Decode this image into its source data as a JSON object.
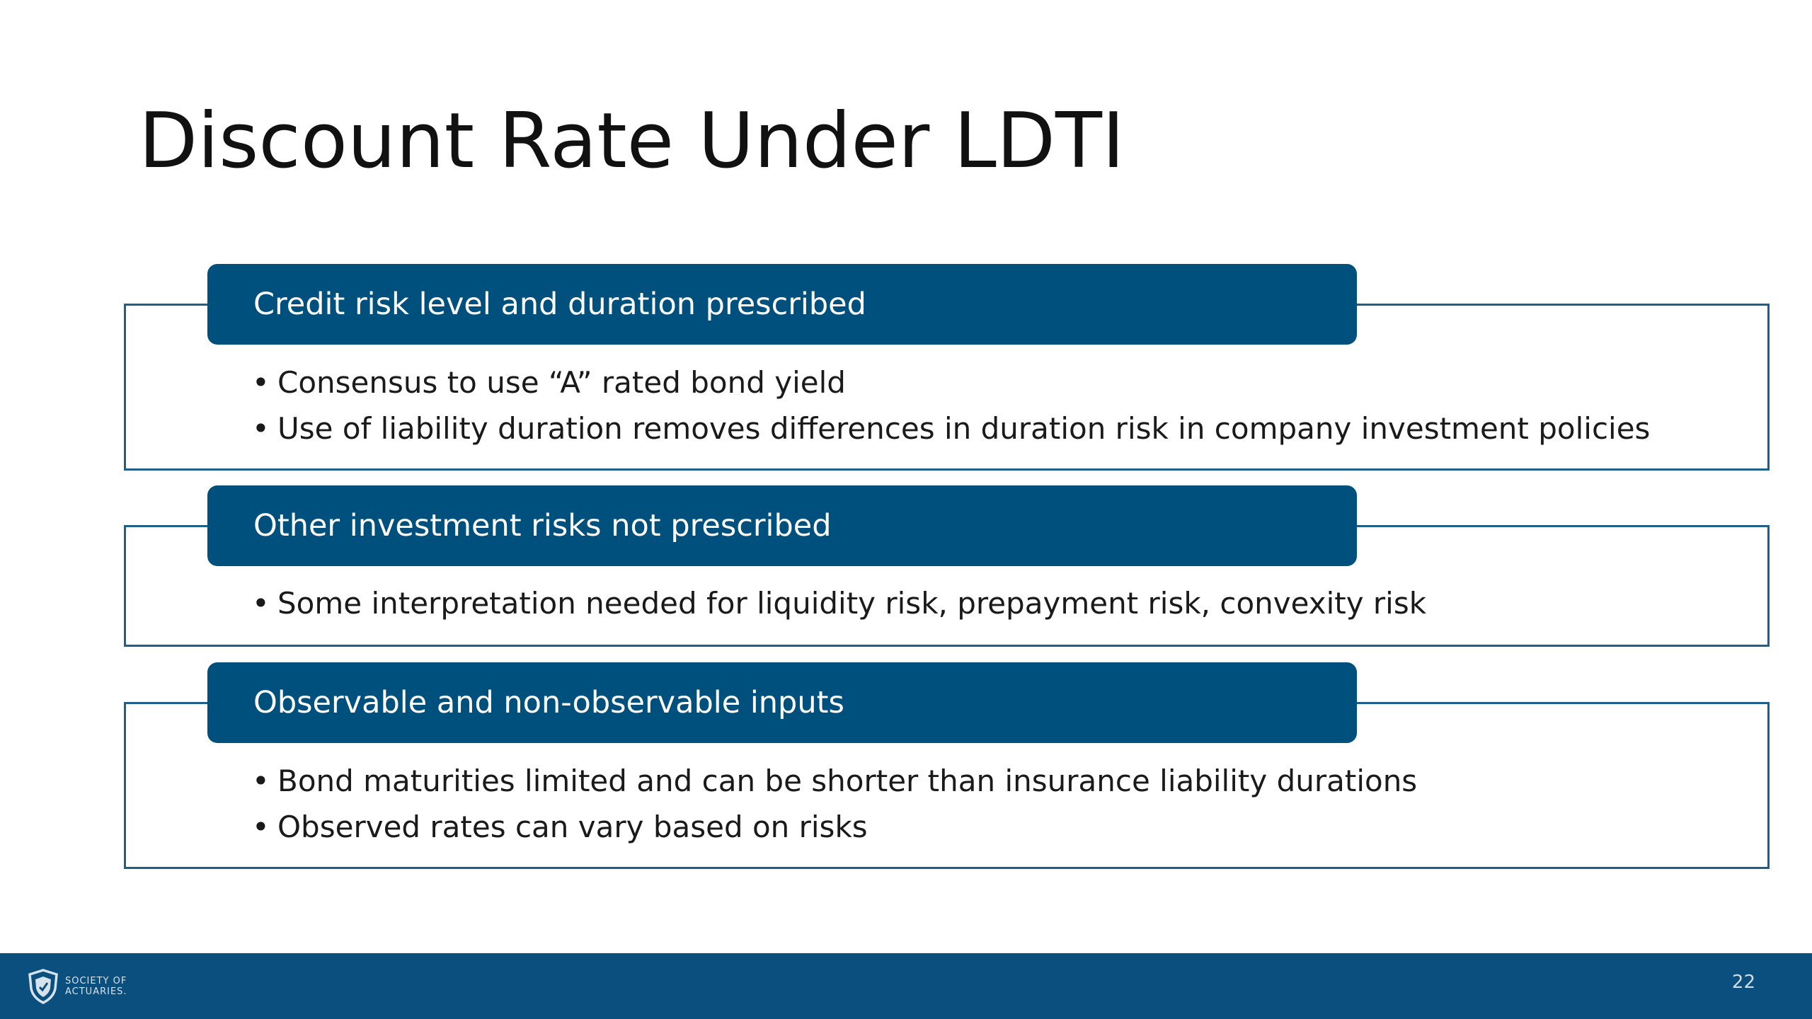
{
  "slide": {
    "title": "Discount Rate Under LDTI",
    "sections": [
      {
        "header": "Credit risk level and duration prescribed",
        "bullets": [
          "Consensus to use “A” rated bond yield",
          "Use of liability duration removes differences in duration risk in company investment policies"
        ]
      },
      {
        "header": "Other investment risks not prescribed",
        "bullets": [
          "Some interpretation needed for liquidity risk, prepayment risk, convexity risk"
        ]
      },
      {
        "header": "Observable and non-observable inputs",
        "bullets": [
          "Bond maturities limited and can be shorter than insurance liability durations",
          "Observed rates can vary based on risks"
        ]
      }
    ],
    "bullet_glyph": "•"
  },
  "footer": {
    "logo_line1": "SOCIETY OF",
    "logo_line2": "ACTUARIES.",
    "logo_icon": "shield-icon",
    "page_number": "22"
  },
  "colors": {
    "header_fill": "#00507e",
    "frame_border": "#1f5f8b",
    "footer_fill": "#0a4f7d"
  }
}
